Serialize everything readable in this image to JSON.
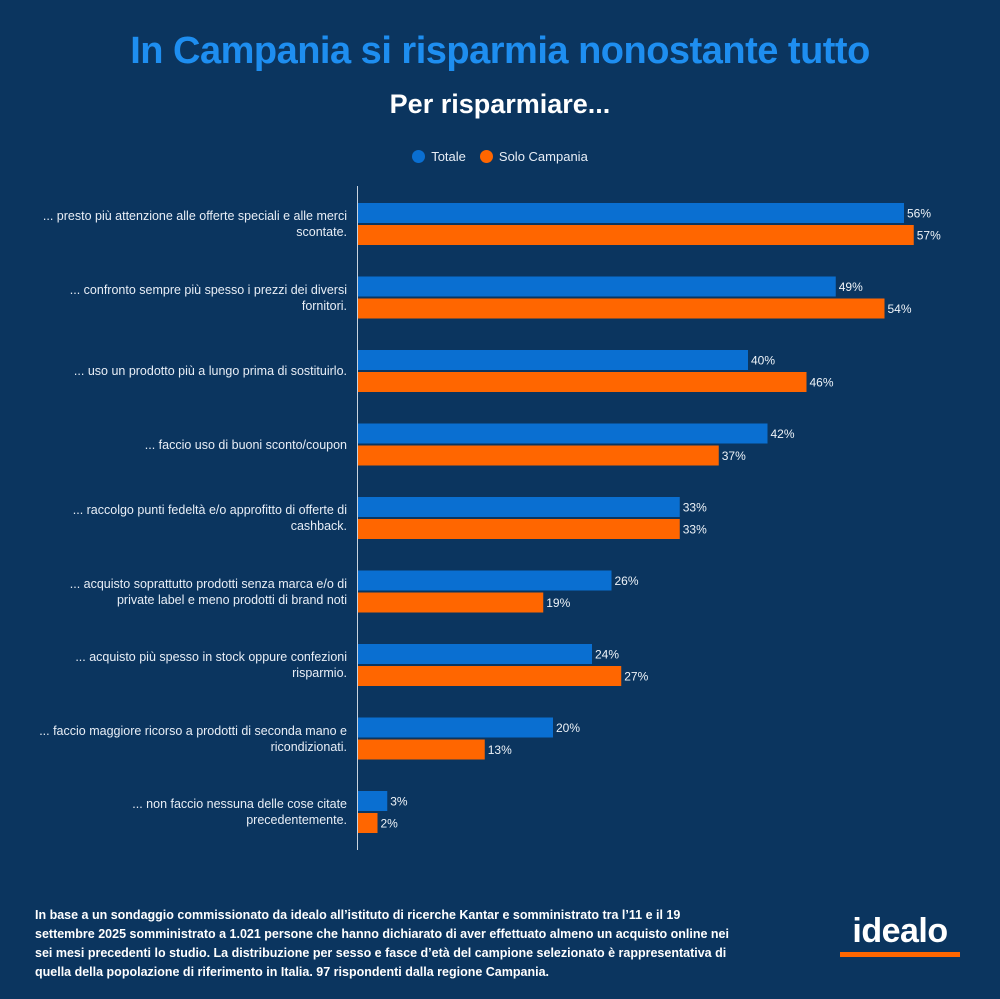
{
  "title": "In Campania si risparmia nonostante tutto",
  "subtitle": "Per risparmiare...",
  "colors": {
    "background": "#0b355f",
    "title": "#1e8ef0",
    "totale": "#0a6fd1",
    "campania": "#ff6600"
  },
  "chart_data": {
    "type": "bar",
    "orientation": "horizontal",
    "title": "Per risparmiare...",
    "xlabel": "",
    "ylabel": "",
    "xlim": [
      0,
      60
    ],
    "grid": false,
    "legend_position": "top-center",
    "value_format": "percent",
    "categories": [
      "... presto più attenzione alle offerte speciali e alle merci scontate.",
      "... confronto sempre più spesso i prezzi dei diversi fornitori.",
      "... uso un prodotto più a lungo prima di sostituirlo.",
      "... faccio uso di buoni sconto/coupon",
      "... raccolgo punti fedeltà e/o approfitto di offerte di cashback.",
      "... acquisto soprattutto prodotti senza marca e/o di private label e meno prodotti di brand noti",
      "... acquisto più spesso in stock oppure confezioni risparmio.",
      "... faccio maggiore ricorso a prodotti di seconda mano e ricondizionati.",
      "... non faccio nessuna delle cose citate precedentemente."
    ],
    "series": [
      {
        "name": "Totale",
        "color": "#0a6fd1",
        "values": [
          56,
          49,
          40,
          42,
          33,
          26,
          24,
          20,
          3
        ]
      },
      {
        "name": "Solo Campania",
        "color": "#ff6600",
        "values": [
          57,
          54,
          46,
          37,
          33,
          19,
          27,
          13,
          2
        ]
      }
    ]
  },
  "footnote": "In base a un sondaggio commissionato da idealo all’istituto di ricerche Kantar e somministrato tra l’11 e il 19 settembre 2025 somministrato a 1.021 persone che hanno dichiarato di aver effettuato almeno un acquisto online nei sei mesi precedenti lo studio. La distribuzione per sesso e fasce d’età del campione selezionato è rappresentativa di quella della popolazione di riferimento in Italia. 97 rispondenti dalla regione Campania.",
  "logo": {
    "text": "idealo"
  }
}
